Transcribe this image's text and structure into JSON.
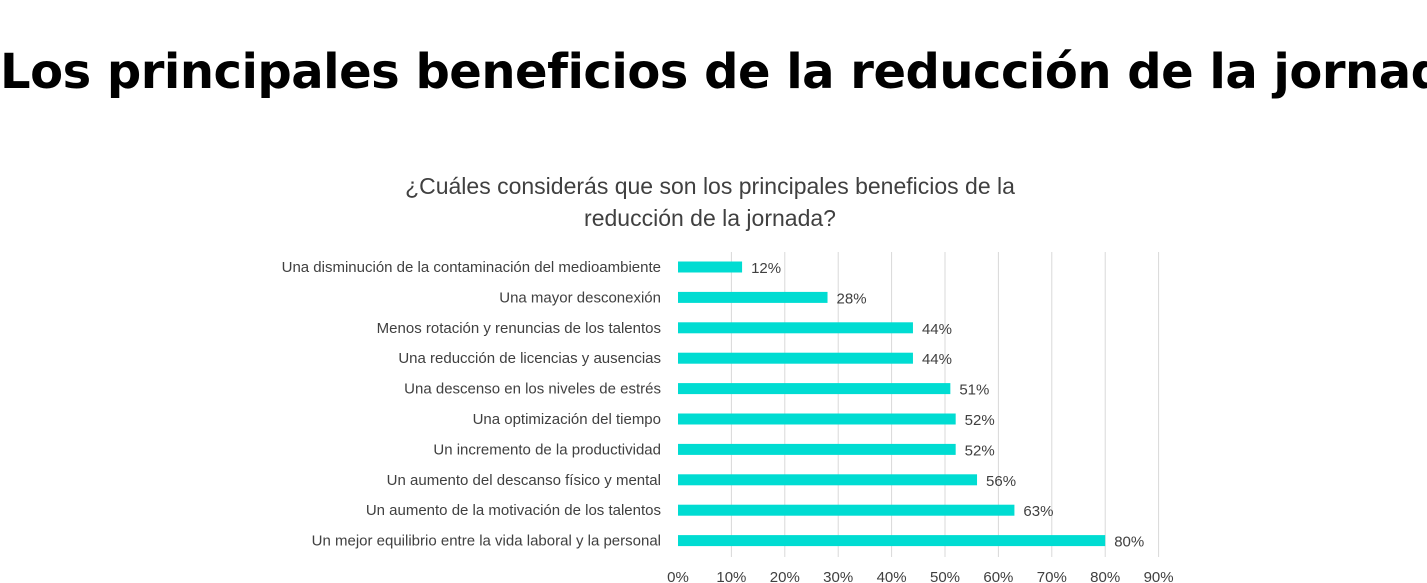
{
  "page": {
    "title": "Los principales beneficios de la reducción de la jornada"
  },
  "chart_data": {
    "type": "bar",
    "orientation": "horizontal",
    "title_line1": "¿Cuáles considerás que son los principales beneficios de la",
    "title_line2": "reducción de la jornada?",
    "categories": [
      "Una disminución de la contaminación del medioambiente",
      "Una mayor desconexión",
      "Menos rotación y renuncias de los talentos",
      "Una reducción de licencias y ausencias",
      "Una descenso en los niveles de estrés",
      "Una optimización del tiempo",
      "Un incremento de la productividad",
      "Un aumento del descanso físico y mental",
      "Un aumento de la motivación de los talentos",
      "Un mejor equilibrio entre la vida laboral y la personal"
    ],
    "values": [
      12,
      28,
      44,
      44,
      51,
      52,
      52,
      56,
      63,
      80
    ],
    "value_labels": [
      "12%",
      "28%",
      "44%",
      "44%",
      "51%",
      "52%",
      "52%",
      "56%",
      "63%",
      "80%"
    ],
    "xlim": [
      0,
      90
    ],
    "xticks": [
      0,
      10,
      20,
      30,
      40,
      50,
      60,
      70,
      80,
      90
    ],
    "xtick_labels": [
      "0%",
      "10%",
      "20%",
      "30%",
      "40%",
      "50%",
      "60%",
      "70%",
      "80%",
      "90%"
    ],
    "grid": true,
    "colors": {
      "bar": "#00DCD2",
      "grid": "#D9D9D9",
      "text": "#404040"
    }
  }
}
